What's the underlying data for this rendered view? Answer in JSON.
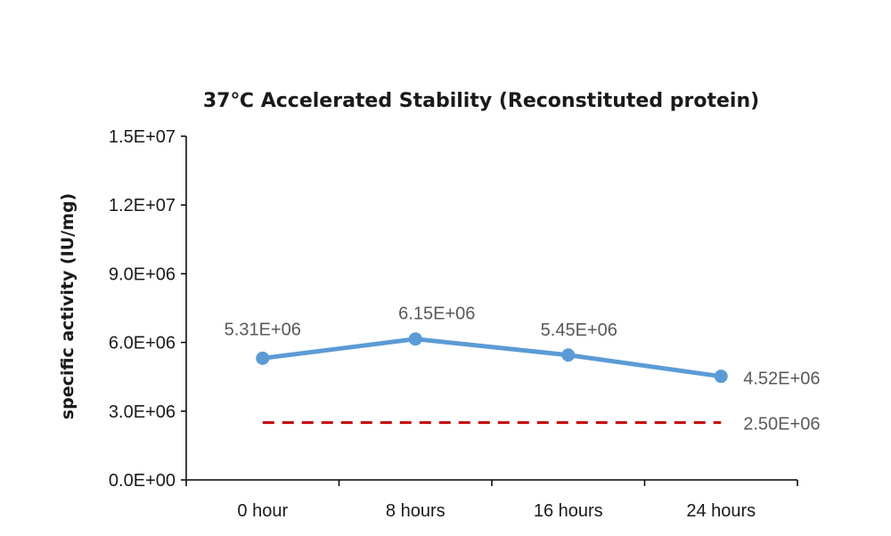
{
  "chart_data": {
    "type": "line",
    "title": "37℃ Accelerated  Stability (Reconstituted protein)",
    "xlabel": "",
    "ylabel": "specific activity (IU/mg)",
    "categories": [
      "0 hour",
      "8 hours",
      "16 hours",
      "24 hours"
    ],
    "ylim": [
      0,
      15000000
    ],
    "yticks": [
      0,
      3000000,
      6000000,
      9000000,
      12000000,
      15000000
    ],
    "ytick_labels": [
      "0.0E+00",
      "3.0E+06",
      "6.0E+06",
      "9.0E+06",
      "1.2E+07",
      "1.5E+07"
    ],
    "grid": false,
    "legend": "none",
    "series": [
      {
        "values": [
          5310000,
          6150000,
          5450000,
          4520000
        ],
        "data_labels": [
          "5.31E+06",
          "6.15E+06",
          "5.45E+06",
          "4.52E+06"
        ],
        "color": "#5b9bd5",
        "style": "solid",
        "markers": true
      },
      {
        "values": [
          2500000,
          2500000,
          2500000,
          2500000
        ],
        "data_labels": [
          "2.50E+06"
        ],
        "color": "#c00000",
        "style": "dashed",
        "markers": false
      }
    ]
  }
}
